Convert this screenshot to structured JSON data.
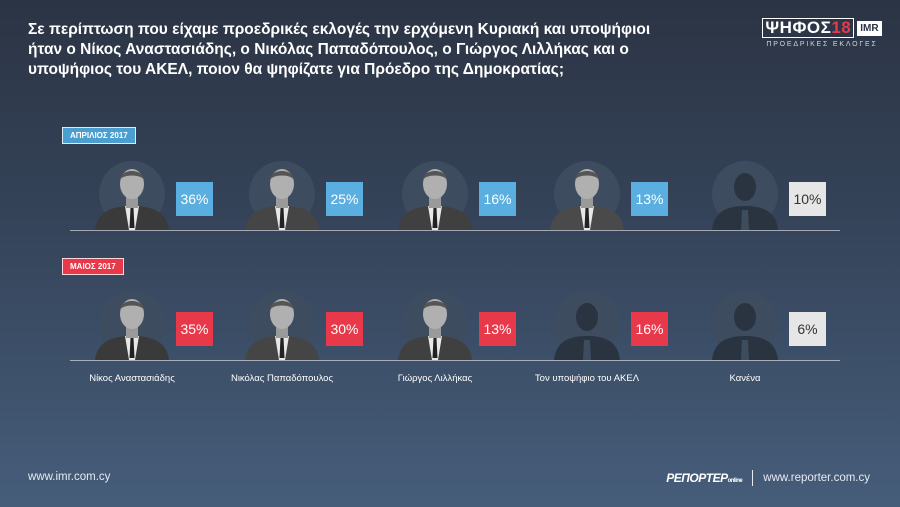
{
  "question": "Σε περίπτωση που είχαμε προεδρικές εκλογές την ερχόμενη Κυριακή και υποψήφιοι ήταν ο Νίκος Αναστασιάδης, ο Νικόλας Παπαδόπουλος, ο Γιώργος Λιλλήκας και ο υποψήφιος του ΑΚΕΛ, ποιον θα ψηφίζατε για Πρόεδρο της Δημοκρατίας;",
  "logo": {
    "main": "ΨΗΦΟΣ",
    "num": "18",
    "imr": "IMR",
    "sub": "ΠΡΟΕΔΡΙΚΕΣ ΕΚΛΟΓΕΣ"
  },
  "footer": {
    "left": "www.imr.com.cy",
    "brand": "ΡΕΠΟΡΤΕΡ",
    "brand_suffix": "online",
    "right": "www.reporter.com.cy"
  },
  "colors": {
    "april": "#5aaee0",
    "may": "#e8394a",
    "none": "#e6e6e6"
  },
  "chart_data": {
    "type": "bar",
    "categories": [
      "Νίκος Αναστασιάδης",
      "Νικόλας Παπαδόπουλος",
      "Γιώργος Λιλλήκας",
      "Τον υποψήφιο του ΑΚΕΛ",
      "Κανένα"
    ],
    "series": [
      {
        "name": "ΑΠΡΙΛΙΟΣ 2017",
        "values": [
          36,
          25,
          16,
          13,
          10
        ],
        "labels": [
          "36%",
          "25%",
          "16%",
          "13%",
          "10%"
        ]
      },
      {
        "name": "ΜΑΙΟΣ 2017",
        "values": [
          35,
          30,
          13,
          16,
          6
        ],
        "labels": [
          "35%",
          "30%",
          "13%",
          "16%",
          "6%"
        ]
      }
    ],
    "unit": "%"
  }
}
